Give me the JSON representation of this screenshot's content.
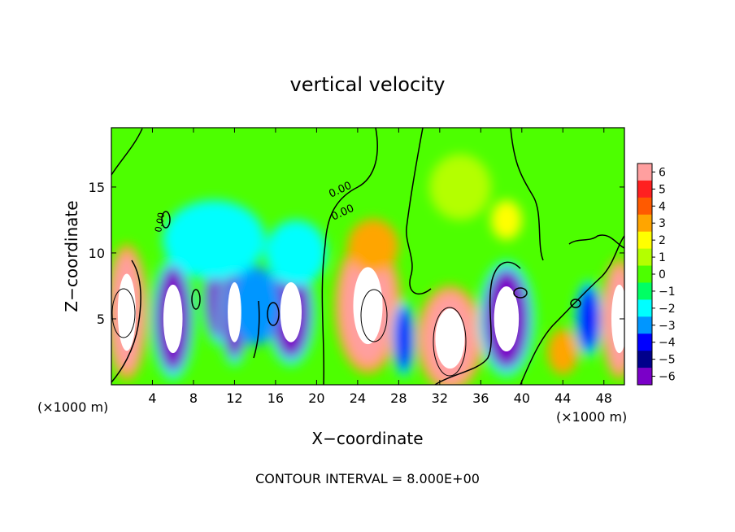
{
  "chart_data": {
    "type": "heatmap",
    "title": "vertical velocity",
    "xlabel": "X−coordinate",
    "ylabel": "Z−coordinate",
    "x_unit": "(×1000 m)",
    "x_unit_right": "(×1000 m)",
    "footer": "CONTOUR INTERVAL = 8.000E+00",
    "xlim": [
      0,
      50
    ],
    "ylim": [
      0,
      19.5
    ],
    "xticks": [
      4,
      8,
      12,
      16,
      20,
      24,
      28,
      32,
      36,
      40,
      44,
      48
    ],
    "yticks": [
      5,
      10,
      15
    ],
    "contour_labels": [
      "0.00",
      "0.00",
      "0.00"
    ],
    "colorbar": {
      "ticks": [
        "6",
        "5",
        "4",
        "3",
        "2",
        "1",
        "0",
        "−1",
        "−2",
        "−3",
        "−4",
        "−5",
        "−6"
      ],
      "colors": [
        "#ff9f9f",
        "#ff2020",
        "#ff5a00",
        "#ffa500",
        "#ffff00",
        "#b4ff00",
        "#4dff00",
        "#00ff64",
        "#00ffff",
        "#0096ff",
        "#0000ff",
        "#00008b",
        "#7a00c8"
      ]
    },
    "cells": [
      {
        "x": 1.5,
        "z": 5.5,
        "value": 7,
        "rx": 1.6,
        "rz": 4.5
      },
      {
        "x": 6,
        "z": 5,
        "value": -7,
        "rx": 1.7,
        "rz": 4
      },
      {
        "x": 10.5,
        "z": 6.5,
        "value": -6,
        "rx": 1.3,
        "rz": 3
      },
      {
        "x": 12,
        "z": 5.5,
        "value": -7,
        "rx": 1.2,
        "rz": 3.5
      },
      {
        "x": 17.5,
        "z": 5.5,
        "value": -7,
        "rx": 1.9,
        "rz": 3.5
      },
      {
        "x": 14,
        "z": 6,
        "value": -2.5,
        "rx": 2.5,
        "rz": 3
      },
      {
        "x": 25,
        "z": 6,
        "value": 7,
        "rx": 2.6,
        "rz": 4.5
      },
      {
        "x": 25.5,
        "z": 10.5,
        "value": 3,
        "rx": 2,
        "rz": 1.8
      },
      {
        "x": 28.5,
        "z": 3.5,
        "value": -4,
        "rx": 0.9,
        "rz": 2.5
      },
      {
        "x": 33,
        "z": 3.5,
        "value": 7,
        "rx": 2.6,
        "rz": 3.5
      },
      {
        "x": 38.5,
        "z": 5,
        "value": -7,
        "rx": 2.2,
        "rz": 3.8
      },
      {
        "x": 44,
        "z": 2.5,
        "value": 3,
        "rx": 1.2,
        "rz": 1.5
      },
      {
        "x": 46.5,
        "z": 5,
        "value": -4,
        "rx": 1.1,
        "rz": 2.5
      },
      {
        "x": 49.5,
        "z": 5,
        "value": 7,
        "rx": 1.4,
        "rz": 4
      },
      {
        "x": 34,
        "z": 15,
        "value": 1.5,
        "rx": 3,
        "rz": 2.5
      },
      {
        "x": 38.5,
        "z": 12.5,
        "value": 2.5,
        "rx": 1.5,
        "rz": 1.5
      },
      {
        "x": 10,
        "z": 11,
        "value": -2,
        "rx": 5,
        "rz": 3
      },
      {
        "x": 18,
        "z": 10,
        "value": -1.5,
        "rx": 3,
        "rz": 2.5
      }
    ]
  }
}
